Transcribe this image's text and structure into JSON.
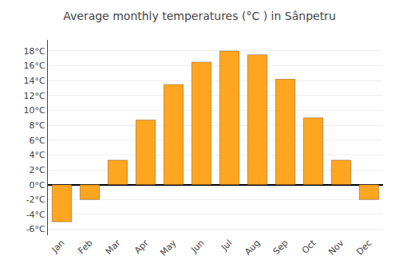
{
  "chart_data": {
    "type": "bar",
    "title": "Average monthly temperatures (°C ) in Sânpetru",
    "categories": [
      "Jan",
      "Feb",
      "Mar",
      "Apr",
      "May",
      "Jun",
      "Jul",
      "Aug",
      "Sep",
      "Oct",
      "Nov",
      "Dec"
    ],
    "values": [
      -5.0,
      -2.0,
      3.3,
      8.7,
      13.5,
      16.5,
      18.0,
      17.5,
      14.2,
      9.0,
      3.3,
      -2.0
    ],
    "color": "#FFA520",
    "ylim": [
      -6.8,
      19.5
    ],
    "yticks": [
      {
        "value": -6,
        "label": "-6°C"
      },
      {
        "value": -4,
        "label": "-4°C"
      },
      {
        "value": -2,
        "label": "-2°C"
      },
      {
        "value": 0,
        "label": "0°C"
      },
      {
        "value": 2,
        "label": "2°C"
      },
      {
        "value": 4,
        "label": "4°C"
      },
      {
        "value": 6,
        "label": "6°C"
      },
      {
        "value": 8,
        "label": "8°C"
      },
      {
        "value": 10,
        "label": "10°C"
      },
      {
        "value": 12,
        "label": "12°C"
      },
      {
        "value": 14,
        "label": "14°C"
      },
      {
        "value": 16,
        "label": "16°C"
      },
      {
        "value": 18,
        "label": "18°C"
      }
    ],
    "grid": true
  }
}
